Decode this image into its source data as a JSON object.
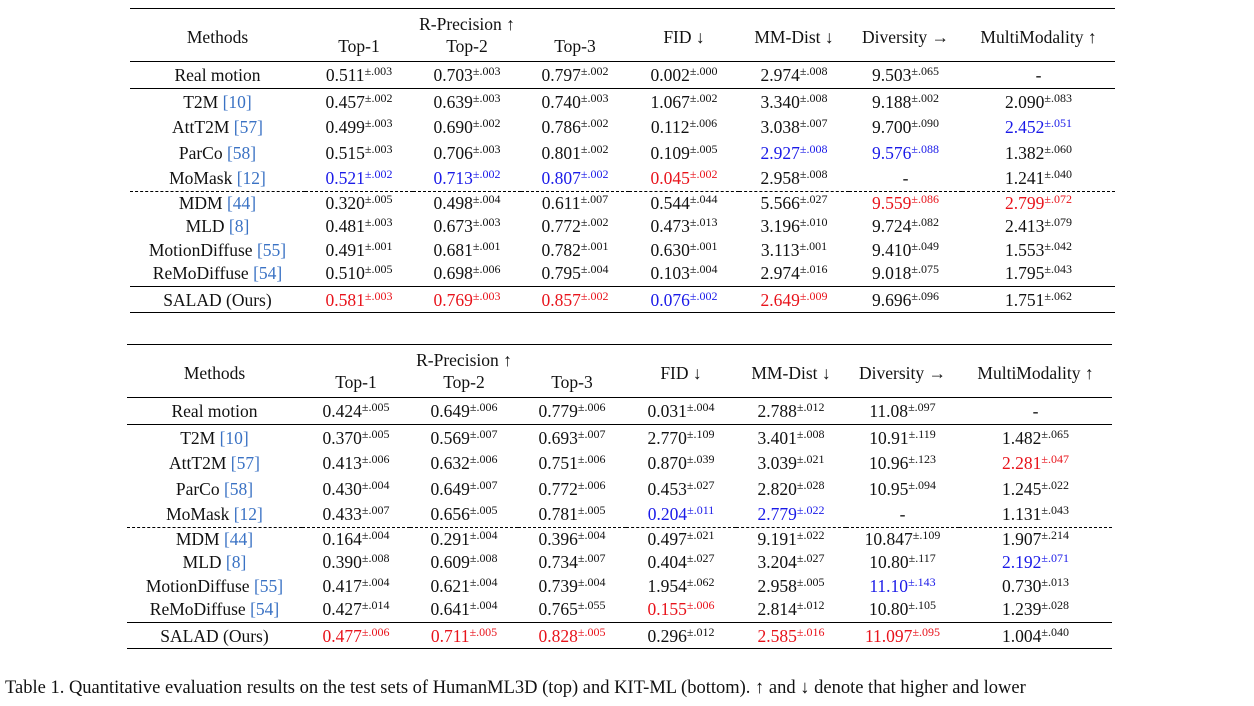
{
  "tables": [
    {
      "header": {
        "methods": "Methods",
        "rprec": "R-Precision ↑",
        "top1": "Top-1",
        "top2": "Top-2",
        "top3": "Top-3",
        "fid": "FID ↓",
        "mmdist": "MM-Dist ↓",
        "diversity": "Diversity →",
        "multimodality": "MultiModality ↑"
      },
      "sections": [
        [
          {
            "method": "Real motion",
            "cells": [
              [
                "0.511",
                "±.003"
              ],
              [
                "0.703",
                "±.003"
              ],
              [
                "0.797",
                "±.002"
              ],
              [
                "0.002",
                "±.000"
              ],
              [
                "2.974",
                "±.008"
              ],
              [
                "9.503",
                "±.065"
              ],
              [
                "-"
              ]
            ]
          }
        ],
        [
          {
            "method": "T2M",
            "ref": "[10]",
            "cells": [
              [
                "0.457",
                "±.002"
              ],
              [
                "0.639",
                "±.003"
              ],
              [
                "0.740",
                "±.003"
              ],
              [
                "1.067",
                "±.002"
              ],
              [
                "3.340",
                "±.008"
              ],
              [
                "9.188",
                "±.002"
              ],
              [
                "2.090",
                "±.083"
              ]
            ]
          },
          {
            "method": "AttT2M",
            "ref": "[57]",
            "cells": [
              [
                "0.499",
                "±.003"
              ],
              [
                "0.690",
                "±.002"
              ],
              [
                "0.786",
                "±.002"
              ],
              [
                "0.112",
                "±.006"
              ],
              [
                "3.038",
                "±.007"
              ],
              [
                "9.700",
                "±.090"
              ],
              [
                "2.452",
                "±.051",
                "blue"
              ]
            ]
          },
          {
            "method": "ParCo",
            "ref": "[58]",
            "cells": [
              [
                "0.515",
                "±.003"
              ],
              [
                "0.706",
                "±.003"
              ],
              [
                "0.801",
                "±.002"
              ],
              [
                "0.109",
                "±.005"
              ],
              [
                "2.927",
                "±.008",
                "blue"
              ],
              [
                "9.576",
                "±.088",
                "blue"
              ],
              [
                "1.382",
                "±.060"
              ]
            ]
          },
          {
            "method": "MoMask",
            "ref": "[12]",
            "cells": [
              [
                "0.521",
                "±.002",
                "blue"
              ],
              [
                "0.713",
                "±.002",
                "blue"
              ],
              [
                "0.807",
                "±.002",
                "blue"
              ],
              [
                "0.045",
                "±.002",
                "red"
              ],
              [
                "2.958",
                "±.008"
              ],
              [
                "-"
              ],
              [
                "1.241",
                "±.040"
              ]
            ]
          }
        ],
        [
          {
            "method": "MDM",
            "ref": "[44]",
            "cells": [
              [
                "0.320",
                "±.005"
              ],
              [
                "0.498",
                "±.004"
              ],
              [
                "0.611",
                "±.007"
              ],
              [
                "0.544",
                "±.044"
              ],
              [
                "5.566",
                "±.027"
              ],
              [
                "9.559",
                "±.086",
                "red"
              ],
              [
                "2.799",
                "±.072",
                "red"
              ]
            ]
          },
          {
            "method": "MLD",
            "ref": "[8]",
            "cells": [
              [
                "0.481",
                "±.003"
              ],
              [
                "0.673",
                "±.003"
              ],
              [
                "0.772",
                "±.002"
              ],
              [
                "0.473",
                "±.013"
              ],
              [
                "3.196",
                "±.010"
              ],
              [
                "9.724",
                "±.082"
              ],
              [
                "2.413",
                "±.079"
              ]
            ]
          },
          {
            "method": "MotionDiffuse",
            "ref": "[55]",
            "cells": [
              [
                "0.491",
                "±.001"
              ],
              [
                "0.681",
                "±.001"
              ],
              [
                "0.782",
                "±.001"
              ],
              [
                "0.630",
                "±.001"
              ],
              [
                "3.113",
                "±.001"
              ],
              [
                "9.410",
                "±.049"
              ],
              [
                "1.553",
                "±.042"
              ]
            ]
          },
          {
            "method": "ReMoDiffuse",
            "ref": "[54]",
            "cells": [
              [
                "0.510",
                "±.005"
              ],
              [
                "0.698",
                "±.006"
              ],
              [
                "0.795",
                "±.004"
              ],
              [
                "0.103",
                "±.004"
              ],
              [
                "2.974",
                "±.016"
              ],
              [
                "9.018",
                "±.075"
              ],
              [
                "1.795",
                "±.043"
              ]
            ]
          }
        ],
        [
          {
            "method": "SALAD (Ours)",
            "cells": [
              [
                "0.581",
                "±.003",
                "red"
              ],
              [
                "0.769",
                "±.003",
                "red"
              ],
              [
                "0.857",
                "±.002",
                "red"
              ],
              [
                "0.076",
                "±.002",
                "blue"
              ],
              [
                "2.649",
                "±.009",
                "red"
              ],
              [
                "9.696",
                "±.096"
              ],
              [
                "1.751",
                "±.062"
              ]
            ]
          }
        ]
      ]
    },
    {
      "header": {
        "methods": "Methods",
        "rprec": "R-Precision ↑",
        "top1": "Top-1",
        "top2": "Top-2",
        "top3": "Top-3",
        "fid": "FID ↓",
        "mmdist": "MM-Dist ↓",
        "diversity": "Diversity →",
        "multimodality": "MultiModality ↑"
      },
      "sections": [
        [
          {
            "method": "Real motion",
            "cells": [
              [
                "0.424",
                "±.005"
              ],
              [
                "0.649",
                "±.006"
              ],
              [
                "0.779",
                "±.006"
              ],
              [
                "0.031",
                "±.004"
              ],
              [
                "2.788",
                "±.012"
              ],
              [
                "11.08",
                "±.097"
              ],
              [
                "-"
              ]
            ]
          }
        ],
        [
          {
            "method": "T2M",
            "ref": "[10]",
            "cells": [
              [
                "0.370",
                "±.005"
              ],
              [
                "0.569",
                "±.007"
              ],
              [
                "0.693",
                "±.007"
              ],
              [
                "2.770",
                "±.109"
              ],
              [
                "3.401",
                "±.008"
              ],
              [
                "10.91",
                "±.119"
              ],
              [
                "1.482",
                "±.065"
              ]
            ]
          },
          {
            "method": "AttT2M",
            "ref": "[57]",
            "cells": [
              [
                "0.413",
                "±.006"
              ],
              [
                "0.632",
                "±.006"
              ],
              [
                "0.751",
                "±.006"
              ],
              [
                "0.870",
                "±.039"
              ],
              [
                "3.039",
                "±.021"
              ],
              [
                "10.96",
                "±.123"
              ],
              [
                "2.281",
                "±.047",
                "red"
              ]
            ]
          },
          {
            "method": "ParCo",
            "ref": "[58]",
            "cells": [
              [
                "0.430",
                "±.004"
              ],
              [
                "0.649",
                "±.007"
              ],
              [
                "0.772",
                "±.006"
              ],
              [
                "0.453",
                "±.027"
              ],
              [
                "2.820",
                "±.028"
              ],
              [
                "10.95",
                "±.094"
              ],
              [
                "1.245",
                "±.022"
              ]
            ]
          },
          {
            "method": "MoMask",
            "ref": "[12]",
            "cells": [
              [
                "0.433",
                "±.007"
              ],
              [
                "0.656",
                "±.005"
              ],
              [
                "0.781",
                "±.005"
              ],
              [
                "0.204",
                "±.011",
                "blue"
              ],
              [
                "2.779",
                "±.022",
                "blue"
              ],
              [
                "-"
              ],
              [
                "1.131",
                "±.043"
              ]
            ]
          }
        ],
        [
          {
            "method": "MDM",
            "ref": "[44]",
            "cells": [
              [
                "0.164",
                "±.004"
              ],
              [
                "0.291",
                "±.004"
              ],
              [
                "0.396",
                "±.004"
              ],
              [
                "0.497",
                "±.021"
              ],
              [
                "9.191",
                "±.022"
              ],
              [
                "10.847",
                "±.109"
              ],
              [
                "1.907",
                "±.214"
              ]
            ]
          },
          {
            "method": "MLD",
            "ref": "[8]",
            "cells": [
              [
                "0.390",
                "±.008"
              ],
              [
                "0.609",
                "±.008"
              ],
              [
                "0.734",
                "±.007"
              ],
              [
                "0.404",
                "±.027"
              ],
              [
                "3.204",
                "±.027"
              ],
              [
                "10.80",
                "±.117"
              ],
              [
                "2.192",
                "±.071",
                "blue"
              ]
            ]
          },
          {
            "method": "MotionDiffuse",
            "ref": "[55]",
            "cells": [
              [
                "0.417",
                "±.004"
              ],
              [
                "0.621",
                "±.004"
              ],
              [
                "0.739",
                "±.004"
              ],
              [
                "1.954",
                "±.062"
              ],
              [
                "2.958",
                "±.005"
              ],
              [
                "11.10",
                "±.143",
                "blue"
              ],
              [
                "0.730",
                "±.013"
              ]
            ]
          },
          {
            "method": "ReMoDiffuse",
            "ref": "[54]",
            "cells": [
              [
                "0.427",
                "±.014"
              ],
              [
                "0.641",
                "±.004"
              ],
              [
                "0.765",
                "±.055"
              ],
              [
                "0.155",
                "±.006",
                "red"
              ],
              [
                "2.814",
                "±.012"
              ],
              [
                "10.80",
                "±.105"
              ],
              [
                "1.239",
                "±.028"
              ]
            ]
          }
        ],
        [
          {
            "method": "SALAD (Ours)",
            "cells": [
              [
                "0.477",
                "±.006",
                "red"
              ],
              [
                "0.711",
                "±.005",
                "red"
              ],
              [
                "0.828",
                "±.005",
                "red"
              ],
              [
                "0.296",
                "±.012"
              ],
              [
                "2.585",
                "±.016",
                "red"
              ],
              [
                "11.097",
                "±.095",
                "red"
              ],
              [
                "1.004",
                "±.040"
              ]
            ]
          }
        ]
      ]
    }
  ],
  "caption": "Table 1. Quantitative evaluation results on the test sets of HumanML3D (top) and KIT-ML (bottom). ↑ and ↓ denote that higher and lower"
}
